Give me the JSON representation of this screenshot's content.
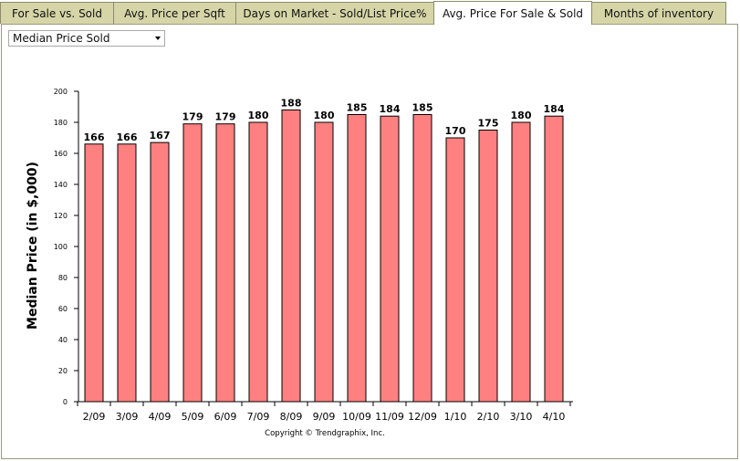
{
  "tabs": [
    {
      "label": "For Sale vs. Sold",
      "active": false
    },
    {
      "label": "Avg. Price per Sqft",
      "active": false
    },
    {
      "label": "Days on Market - Sold/List Price%",
      "active": false
    },
    {
      "label": "Avg. Price For Sale & Sold",
      "active": true
    },
    {
      "label": "Months of inventory",
      "active": false
    }
  ],
  "selector": {
    "value": "Median Price Sold"
  },
  "copyright": "Copyright © Trendgraphix, Inc.",
  "colors": {
    "bar_fill": "#ff8080",
    "bar_stroke": "#000000",
    "tab_inactive": "#d6d5a8"
  },
  "chart_data": {
    "type": "bar",
    "ylabel": "Median Price (in $,000)",
    "xlabel": "",
    "ylim": [
      0,
      200
    ],
    "yticks": [
      0,
      20,
      40,
      60,
      80,
      100,
      120,
      140,
      160,
      180,
      200
    ],
    "categories": [
      "2/09",
      "3/09",
      "4/09",
      "5/09",
      "6/09",
      "7/09",
      "8/09",
      "9/09",
      "10/09",
      "11/09",
      "12/09",
      "1/10",
      "2/10",
      "3/10",
      "4/10"
    ],
    "series": [
      {
        "values": [
          166,
          166,
          167,
          179,
          179,
          180,
          188,
          180,
          185,
          184,
          185,
          170,
          175,
          180,
          184
        ]
      }
    ],
    "grid": false,
    "legend": "none"
  }
}
